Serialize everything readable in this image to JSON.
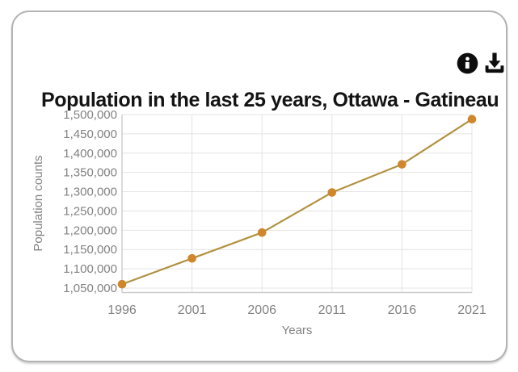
{
  "title": "Population in the last 25 years, Ottawa - Gatineau",
  "card": {
    "background": "#ffffff",
    "border_color": "#b3b3b3"
  },
  "toolbar": {
    "icons": [
      {
        "name": "info-icon",
        "color": "#0d0d0d"
      },
      {
        "name": "download-icon",
        "color": "#0d0d0d"
      }
    ]
  },
  "chart_data": {
    "type": "line",
    "title": "Population in the last 25 years, Ottawa - Gatineau",
    "xlabel": "Years",
    "ylabel": "Population counts",
    "categories": [
      "1996",
      "2001",
      "2006",
      "2011",
      "2016",
      "2021"
    ],
    "series": [
      {
        "name": "Population counts",
        "values": [
          1060000,
          1127000,
          1194000,
          1298000,
          1371000,
          1488000
        ],
        "line_color": "#b29240",
        "marker_color": "#d0862b"
      }
    ],
    "ylim": [
      1040000,
      1500000
    ],
    "yticks": [
      1050000,
      1100000,
      1150000,
      1200000,
      1250000,
      1300000,
      1350000,
      1400000,
      1450000,
      1500000
    ],
    "ytick_labels": [
      "1,050,000",
      "1,100,000",
      "1,150,000",
      "1,200,000",
      "1,250,000",
      "1,300,000",
      "1,350,000",
      "1,400,000",
      "1,450,000",
      "1,500,000"
    ],
    "xtick_labels": [
      "1996",
      "2001",
      "2006",
      "2011",
      "2016",
      "2021"
    ],
    "grid": true,
    "legend": false,
    "grid_color": "#e4e4e4",
    "axis_color": "#cccccc",
    "tick_color": "#828282"
  }
}
